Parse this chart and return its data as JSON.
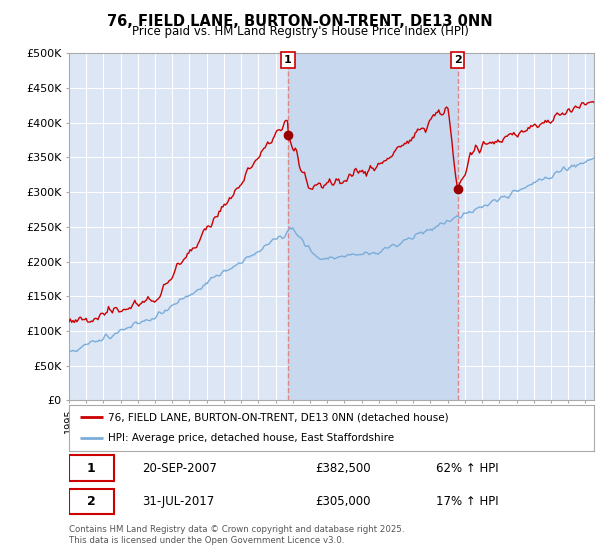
{
  "title": "76, FIELD LANE, BURTON-ON-TRENT, DE13 0NN",
  "subtitle": "Price paid vs. HM Land Registry's House Price Index (HPI)",
  "ylabel_ticks": [
    "£0",
    "£50K",
    "£100K",
    "£150K",
    "£200K",
    "£250K",
    "£300K",
    "£350K",
    "£400K",
    "£450K",
    "£500K"
  ],
  "ylim": [
    0,
    500000
  ],
  "ytick_vals": [
    0,
    50000,
    100000,
    150000,
    200000,
    250000,
    300000,
    350000,
    400000,
    450000,
    500000
  ],
  "xlim_start": 1995.0,
  "xlim_end": 2025.5,
  "legend_line1": "76, FIELD LANE, BURTON-ON-TRENT, DE13 0NN (detached house)",
  "legend_line2": "HPI: Average price, detached house, East Staffordshire",
  "transaction1_date": "20-SEP-2007",
  "transaction1_price": "£382,500",
  "transaction1_hpi": "62% ↑ HPI",
  "transaction2_date": "31-JUL-2017",
  "transaction2_price": "£305,000",
  "transaction2_hpi": "17% ↑ HPI",
  "line_color_red": "#cc0000",
  "line_color_blue": "#7aadda",
  "vline_color": "#dd8888",
  "bg_color": "#dce6f5",
  "shade_color": "#c8d8ef",
  "grid_color": "#ffffff",
  "footer": "Contains HM Land Registry data © Crown copyright and database right 2025.\nThis data is licensed under the Open Government Licence v3.0.",
  "marker1_x": 2007.72,
  "marker1_y": 382500,
  "marker2_x": 2017.58,
  "marker2_y": 305000
}
